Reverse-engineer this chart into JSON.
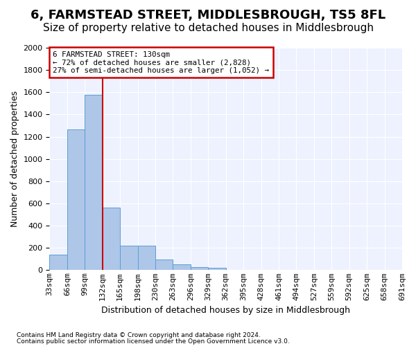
{
  "title": "6, FARMSTEAD STREET, MIDDLESBROUGH, TS5 8FL",
  "subtitle": "Size of property relative to detached houses in Middlesbrough",
  "xlabel": "Distribution of detached houses by size in Middlesbrough",
  "ylabel": "Number of detached properties",
  "footnote1": "Contains HM Land Registry data © Crown copyright and database right 2024.",
  "footnote2": "Contains public sector information licensed under the Open Government Licence v3.0.",
  "bin_labels": [
    "33sqm",
    "66sqm",
    "99sqm",
    "132sqm",
    "165sqm",
    "198sqm",
    "230sqm",
    "263sqm",
    "296sqm",
    "329sqm",
    "362sqm",
    "395sqm",
    "428sqm",
    "461sqm",
    "494sqm",
    "527sqm",
    "559sqm",
    "592sqm",
    "625sqm",
    "658sqm",
    "691sqm"
  ],
  "bar_values": [
    140,
    1265,
    1575,
    565,
    220,
    220,
    95,
    50,
    25,
    20,
    0,
    0,
    0,
    0,
    0,
    0,
    0,
    0,
    0,
    0
  ],
  "bar_color": "#aec6e8",
  "bar_edge_color": "#5a9fd4",
  "vline_color": "#cc0000",
  "annotation_line1": "6 FARMSTEAD STREET: 130sqm",
  "annotation_line2": "← 72% of detached houses are smaller (2,828)",
  "annotation_line3": "27% of semi-detached houses are larger (1,052) →",
  "annotation_box_color": "#cc0000",
  "ylim": [
    0,
    2000
  ],
  "yticks": [
    0,
    200,
    400,
    600,
    800,
    1000,
    1200,
    1400,
    1600,
    1800,
    2000
  ],
  "bg_color": "#eef2ff",
  "grid_color": "#ffffff",
  "title_fontsize": 13,
  "subtitle_fontsize": 11,
  "axis_fontsize": 9,
  "tick_fontsize": 8,
  "footnote_fontsize": 6.5
}
